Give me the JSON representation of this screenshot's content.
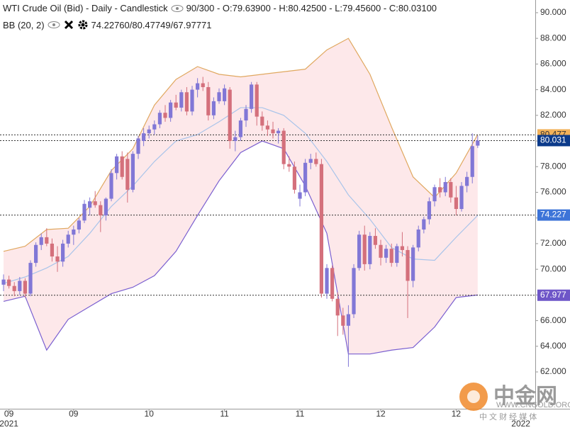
{
  "chart_data": {
    "type": "candlestick",
    "title": "WTI Crude Oil (Bid) - Daily - Candlestick",
    "header_info": "90/300 - O:79.63900 - H:80.42500 - L:79.45600 - C:80.03100",
    "indicator": {
      "name": "BB (20, 2)",
      "values_label": "74.22760/80.47749/67.97771"
    },
    "up_color": "#8177d6",
    "down_color": "#d4707c",
    "open": [
      68.8,
      69.2,
      68.7,
      68.3,
      69.1,
      68.1,
      70.5,
      71.9,
      72.5,
      72.0,
      71.0,
      70.6,
      72.0,
      72.7,
      73.1,
      73.8,
      74.8,
      75.3,
      75.0,
      74.2,
      75.5,
      77.5,
      78.8,
      78.6,
      76.2,
      79.0,
      80.0,
      80.6,
      80.9,
      81.3,
      82.2,
      81.8,
      83.0,
      82.6,
      83.8,
      82.3,
      84.0,
      84.5,
      84.2,
      82.0,
      83.1,
      83.1,
      84.0,
      80.0,
      80.3,
      81.6,
      82.5,
      84.4,
      81.9,
      81.2,
      80.9,
      80.6,
      80.8,
      78.2,
      78.0,
      75.5,
      76.0,
      78.3,
      78.6,
      78.2,
      68.1,
      70.1,
      67.7,
      66.4,
      65.6,
      66.5,
      70.1,
      72.7,
      70.4,
      72.6,
      71.9,
      70.9,
      71.6,
      70.5,
      71.8,
      71.5,
      69.1,
      71.7,
      73.1,
      73.9,
      75.3,
      76.4,
      76.0,
      76.8,
      75.6,
      74.7,
      76.5,
      77.2,
      79.639
    ],
    "high": [
      69.6,
      69.5,
      69.0,
      69.4,
      69.3,
      70.7,
      72.1,
      72.8,
      73.2,
      72.4,
      71.8,
      72.3,
      73.0,
      73.4,
      74.0,
      75.4,
      75.6,
      76.1,
      75.3,
      75.6,
      77.8,
      79.0,
      79.2,
      79.1,
      79.2,
      80.4,
      81.0,
      81.2,
      81.6,
      82.4,
      82.8,
      83.2,
      83.6,
      84.0,
      84.2,
      84.3,
      84.9,
      85.0,
      84.6,
      83.4,
      84.1,
      84.4,
      84.2,
      80.8,
      81.8,
      82.8,
      84.6,
      84.6,
      82.3,
      81.6,
      81.5,
      81.0,
      81.0,
      78.8,
      78.4,
      76.6,
      78.6,
      79.0,
      79.1,
      78.6,
      70.4,
      70.3,
      68.2,
      67.0,
      67.2,
      70.4,
      73.0,
      73.4,
      72.9,
      73.2,
      72.3,
      71.9,
      72.0,
      72.0,
      72.9,
      71.8,
      71.9,
      73.4,
      74.1,
      75.6,
      76.6,
      77.1,
      77.2,
      77.1,
      76.5,
      76.8,
      77.6,
      80.6,
      80.425
    ],
    "low": [
      68.3,
      68.5,
      67.9,
      68.0,
      67.8,
      67.9,
      70.2,
      71.5,
      71.8,
      70.6,
      69.8,
      70.2,
      71.7,
      71.9,
      72.8,
      73.6,
      74.2,
      74.8,
      72.9,
      73.8,
      75.3,
      77.0,
      77.0,
      75.2,
      76.0,
      78.6,
      79.6,
      80.2,
      80.5,
      81.0,
      81.5,
      81.5,
      82.4,
      82.3,
      82.0,
      82.0,
      83.4,
      83.9,
      81.6,
      81.7,
      82.9,
      82.8,
      79.4,
      79.2,
      80.0,
      81.1,
      82.2,
      81.2,
      80.8,
      80.4,
      80.2,
      79.8,
      77.8,
      77.6,
      75.9,
      74.9,
      75.7,
      77.8,
      78.0,
      67.8,
      67.7,
      67.5,
      64.8,
      64.9,
      62.4,
      66.2,
      69.9,
      69.9,
      70.0,
      71.6,
      70.3,
      70.5,
      70.2,
      70.2,
      71.0,
      66.2,
      68.6,
      71.4,
      72.8,
      73.5,
      74.9,
      75.6,
      75.7,
      75.2,
      74.2,
      74.5,
      76.0,
      76.7,
      79.456
    ],
    "close": [
      69.2,
      68.7,
      68.3,
      69.1,
      68.1,
      70.5,
      71.9,
      72.5,
      72.0,
      71.0,
      70.6,
      72.0,
      72.7,
      73.1,
      73.8,
      75.1,
      75.3,
      75.0,
      74.2,
      75.5,
      77.5,
      78.8,
      77.2,
      76.2,
      79.0,
      80.2,
      80.6,
      80.9,
      81.3,
      82.2,
      81.8,
      83.0,
      82.6,
      83.8,
      82.3,
      84.0,
      84.5,
      84.2,
      82.0,
      83.1,
      83.8,
      84.1,
      80.0,
      80.3,
      81.6,
      82.5,
      84.4,
      81.9,
      81.2,
      80.9,
      80.6,
      80.8,
      78.2,
      78.0,
      76.2,
      76.0,
      78.3,
      78.6,
      78.2,
      68.1,
      70.1,
      67.7,
      66.4,
      65.6,
      66.5,
      70.1,
      72.7,
      70.4,
      72.6,
      71.9,
      70.9,
      71.6,
      70.5,
      71.8,
      71.5,
      69.1,
      71.7,
      73.1,
      73.9,
      75.3,
      76.4,
      76.0,
      76.8,
      75.6,
      74.7,
      76.5,
      77.2,
      79.6,
      80.031
    ],
    "bands": [
      {
        "color": "#e0a860",
        "x": [
          0,
          4,
          8,
          12,
          16,
          20,
          24,
          28,
          32,
          36,
          40,
          44,
          48,
          52,
          56,
          60,
          64,
          68,
          72,
          76,
          80,
          84,
          88
        ],
        "values": [
          71.4,
          71.8,
          73.1,
          73.2,
          74.9,
          77.7,
          79.4,
          82.8,
          84.8,
          85.8,
          85.2,
          85.0,
          85.2,
          85.4,
          85.6,
          87.1,
          88.0,
          85.2,
          81.1,
          77.2,
          75.6,
          77.5,
          80.5
        ]
      },
      {
        "color": "#a9c4ea",
        "x": [
          0,
          4,
          8,
          12,
          16,
          20,
          24,
          28,
          32,
          36,
          40,
          44,
          48,
          52,
          56,
          60,
          64,
          68,
          72,
          76,
          80,
          84,
          88
        ],
        "values": [
          68.9,
          69.4,
          70.1,
          71.0,
          72.8,
          74.9,
          76.5,
          78.4,
          80.0,
          80.5,
          81.5,
          82.6,
          82.6,
          82.0,
          80.6,
          78.4,
          75.8,
          73.9,
          71.7,
          70.8,
          70.7,
          72.5,
          74.2
        ]
      },
      {
        "color": "#7a5fd0",
        "x": [
          0,
          4,
          8,
          12,
          16,
          20,
          24,
          28,
          32,
          36,
          40,
          44,
          48,
          52,
          56,
          60,
          64,
          68,
          72,
          76,
          80,
          84,
          88
        ],
        "values": [
          67.5,
          67.9,
          63.7,
          66.1,
          67.1,
          68.1,
          68.6,
          69.5,
          71.4,
          74.2,
          76.9,
          79.1,
          80.0,
          79.4,
          76.5,
          72.8,
          63.4,
          63.4,
          63.7,
          63.9,
          65.5,
          67.8,
          68.0
        ]
      }
    ],
    "band_fill": "#fde8ea",
    "price_lines": [
      {
        "value": 80.47749,
        "label": "80.477",
        "color": "#f2b25a"
      },
      {
        "value": 80.031,
        "label": "80.031",
        "color": "#0b3a8a"
      },
      {
        "value": 74.2276,
        "label": "74.227",
        "color": "#3d74d8"
      },
      {
        "value": 67.97771,
        "label": "67.977",
        "color": "#6e56c8"
      }
    ],
    "xlim": [
      -0.66,
      98.68
    ],
    "ylim": [
      59.13,
      90.99
    ],
    "yticks": [
      {
        "value": 62,
        "label": "62.000"
      },
      {
        "value": 64,
        "label": "64.000"
      },
      {
        "value": 66,
        "label": "66.000"
      },
      {
        "value": 68,
        "label": "68.000"
      },
      {
        "value": 70,
        "label": "70.000"
      },
      {
        "value": 72,
        "label": "72.000"
      },
      {
        "value": 74,
        "label": "74.000"
      },
      {
        "value": 76,
        "label": "76.000"
      },
      {
        "value": 78,
        "label": "78.000"
      },
      {
        "value": 80,
        "label": "80.000"
      },
      {
        "value": 82,
        "label": "82.000"
      },
      {
        "value": 84,
        "label": "84.000"
      },
      {
        "value": 86,
        "label": "86.000"
      },
      {
        "value": 88,
        "label": "88.000"
      },
      {
        "value": 90,
        "label": "90.000"
      }
    ],
    "xticks": [
      {
        "value": 1,
        "label": "09"
      },
      {
        "value": 13,
        "label": "09"
      },
      {
        "value": 27,
        "label": "10"
      },
      {
        "value": 41,
        "label": "11"
      },
      {
        "value": 55,
        "label": "11"
      },
      {
        "value": 70,
        "label": "12"
      },
      {
        "value": 84,
        "label": "12"
      }
    ],
    "year_ticks": [
      {
        "value": 1,
        "label": "2021"
      },
      {
        "value": 96,
        "label": "2022"
      }
    ]
  },
  "watermark": {
    "brand": "中金网",
    "url": "WWW.CNGOLD.ORG",
    "tagline": "中 文 财 经 媒 体"
  }
}
